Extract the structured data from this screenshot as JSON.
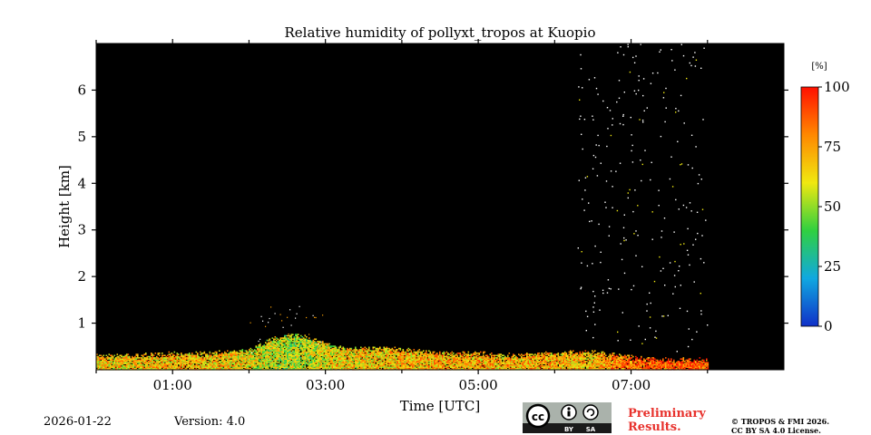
{
  "chart_data": {
    "type": "heatmap",
    "title": "Relative humidity of pollyxt_tropos at Kuopio",
    "xlabel": "Time [UTC]",
    "ylabel": "Height [km]",
    "x_unit": "hours UTC",
    "xlim": [
      0,
      9
    ],
    "ylim": [
      0,
      7
    ],
    "x_ticks": [
      {
        "value": 1,
        "label": "01:00"
      },
      {
        "value": 3,
        "label": "03:00"
      },
      {
        "value": 5,
        "label": "05:00"
      },
      {
        "value": 7,
        "label": "07:00"
      }
    ],
    "x_minor_ticks": [
      0,
      2,
      4,
      6,
      8
    ],
    "y_ticks": [
      {
        "value": 1,
        "label": "1"
      },
      {
        "value": 2,
        "label": "2"
      },
      {
        "value": 3,
        "label": "3"
      },
      {
        "value": 4,
        "label": "4"
      },
      {
        "value": 5,
        "label": "5"
      },
      {
        "value": 6,
        "label": "6"
      }
    ],
    "background": "#000000",
    "data_end_hour": 8.0,
    "colorbar": {
      "unit": "[%]",
      "min": 0,
      "max": 100,
      "ticks": [
        {
          "value": 0,
          "label": "0"
        },
        {
          "value": 25,
          "label": "25"
        },
        {
          "value": 50,
          "label": "50"
        },
        {
          "value": 75,
          "label": "75"
        },
        {
          "value": 100,
          "label": "100"
        }
      ],
      "colors": [
        "#1030c8",
        "#10a8e0",
        "#30d040",
        "#f0e810",
        "#ff8800",
        "#ff1000"
      ]
    },
    "profile": [
      {
        "hour": 0.0,
        "top_km": 0.25,
        "rh": 65
      },
      {
        "hour": 0.5,
        "top_km": 0.25,
        "rh": 68
      },
      {
        "hour": 1.0,
        "top_km": 0.28,
        "rh": 70
      },
      {
        "hour": 1.5,
        "top_km": 0.3,
        "rh": 68
      },
      {
        "hour": 2.0,
        "top_km": 0.35,
        "rh": 62
      },
      {
        "hour": 2.3,
        "top_km": 0.6,
        "rh": 55
      },
      {
        "hour": 2.6,
        "top_km": 0.7,
        "rh": 52
      },
      {
        "hour": 2.9,
        "top_km": 0.55,
        "rh": 58
      },
      {
        "hour": 3.2,
        "top_km": 0.4,
        "rh": 65
      },
      {
        "hour": 3.6,
        "top_km": 0.4,
        "rh": 66
      },
      {
        "hour": 4.0,
        "top_km": 0.38,
        "rh": 70
      },
      {
        "hour": 4.5,
        "top_km": 0.3,
        "rh": 72
      },
      {
        "hour": 5.0,
        "top_km": 0.28,
        "rh": 72
      },
      {
        "hour": 5.5,
        "top_km": 0.25,
        "rh": 70
      },
      {
        "hour": 6.0,
        "top_km": 0.3,
        "rh": 72
      },
      {
        "hour": 6.5,
        "top_km": 0.32,
        "rh": 70
      },
      {
        "hour": 7.0,
        "top_km": 0.2,
        "rh": 85
      },
      {
        "hour": 7.5,
        "top_km": 0.15,
        "rh": 90
      },
      {
        "hour": 8.0,
        "top_km": 0.15,
        "rh": 90
      }
    ],
    "sparse_noise": {
      "start_hour": 6.3,
      "end_hour": 8.0,
      "max_km": 7.0
    }
  },
  "footer": {
    "date": "2026-01-22",
    "version": "Version: 4.0",
    "preliminary_line1": "Preliminary",
    "preliminary_line2": "Results.",
    "copyright_line1": "© TROPOS & FMI 2026.",
    "copyright_line2": "CC BY SA 4.0 License.",
    "license_badge": {
      "cc": "cc",
      "by": "BY",
      "sa": "SA"
    }
  }
}
